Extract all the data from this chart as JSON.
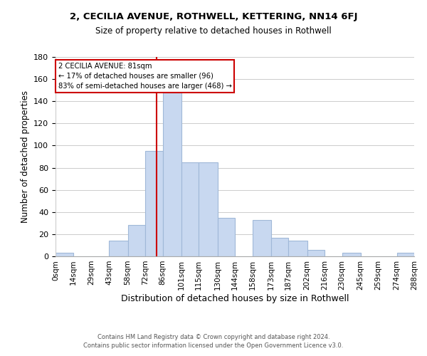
{
  "title": "2, CECILIA AVENUE, ROTHWELL, KETTERING, NN14 6FJ",
  "subtitle": "Size of property relative to detached houses in Rothwell",
  "xlabel": "Distribution of detached houses by size in Rothwell",
  "ylabel": "Number of detached properties",
  "bar_color": "#c8d8f0",
  "bar_edgecolor": "#a0b8d8",
  "bins": [
    0,
    14,
    29,
    43,
    58,
    72,
    86,
    101,
    115,
    130,
    144,
    158,
    173,
    187,
    202,
    216,
    230,
    245,
    259,
    274,
    288
  ],
  "counts": [
    3,
    0,
    0,
    14,
    28,
    95,
    148,
    85,
    85,
    35,
    0,
    33,
    17,
    14,
    6,
    0,
    3,
    0,
    0,
    3
  ],
  "tick_labels": [
    "0sqm",
    "14sqm",
    "29sqm",
    "43sqm",
    "58sqm",
    "72sqm",
    "86sqm",
    "101sqm",
    "115sqm",
    "130sqm",
    "144sqm",
    "158sqm",
    "173sqm",
    "187sqm",
    "202sqm",
    "216sqm",
    "230sqm",
    "245sqm",
    "259sqm",
    "274sqm",
    "288sqm"
  ],
  "vline_x": 81,
  "vline_color": "#cc0000",
  "annotation_title": "2 CECILIA AVENUE: 81sqm",
  "annotation_line1": "← 17% of detached houses are smaller (96)",
  "annotation_line2": "83% of semi-detached houses are larger (468) →",
  "annotation_box_color": "#ffffff",
  "annotation_box_edgecolor": "#cc0000",
  "ylim": [
    0,
    180
  ],
  "yticks": [
    0,
    20,
    40,
    60,
    80,
    100,
    120,
    140,
    160,
    180
  ],
  "footer1": "Contains HM Land Registry data © Crown copyright and database right 2024.",
  "footer2": "Contains public sector information licensed under the Open Government Licence v3.0."
}
